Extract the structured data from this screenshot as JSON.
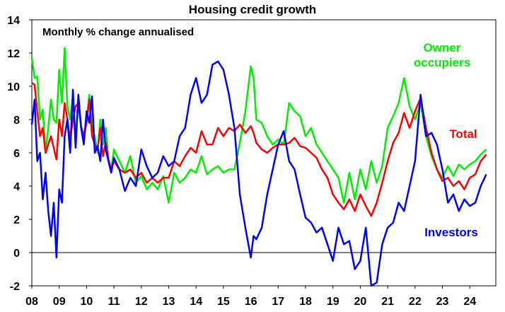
{
  "chart_data": {
    "type": "line",
    "title": "Housing credit growth",
    "subtitle": "Monthly % change annualised",
    "xlabel": "",
    "ylabel": "",
    "xlim": [
      2008.0,
      2024.95
    ],
    "ylim": [
      -2,
      14
    ],
    "y_ticks": [
      "14",
      "12",
      "10",
      "8",
      "6",
      "4",
      "2",
      "0",
      "-2"
    ],
    "x_ticks": [
      "08",
      "09",
      "10",
      "11",
      "12",
      "13",
      "14",
      "15",
      "16",
      "17",
      "18",
      "19",
      "20",
      "21",
      "22",
      "23",
      "24"
    ],
    "series": [
      {
        "name": "Owner occupiers",
        "label_lines": [
          "Owner",
          "occupiers"
        ],
        "color": "#00ee00",
        "x": [
          2008.0,
          2008.1,
          2008.2,
          2008.3,
          2008.4,
          2008.5,
          2008.6,
          2008.7,
          2008.8,
          2008.9,
          2009.0,
          2009.1,
          2009.2,
          2009.3,
          2009.4,
          2009.5,
          2009.6,
          2009.7,
          2009.8,
          2009.9,
          2010.0,
          2010.1,
          2010.2,
          2010.3,
          2010.4,
          2010.5,
          2010.6,
          2010.7,
          2010.8,
          2010.9,
          2011.0,
          2011.2,
          2011.4,
          2011.6,
          2011.8,
          2012.0,
          2012.2,
          2012.4,
          2012.6,
          2012.8,
          2013.0,
          2013.2,
          2013.4,
          2013.6,
          2013.8,
          2014.0,
          2014.2,
          2014.4,
          2014.6,
          2014.8,
          2015.0,
          2015.2,
          2015.4,
          2015.6,
          2015.8,
          2016.0,
          2016.1,
          2016.2,
          2016.4,
          2016.6,
          2016.8,
          2017.0,
          2017.2,
          2017.4,
          2017.6,
          2017.8,
          2018.0,
          2018.2,
          2018.4,
          2018.6,
          2018.8,
          2019.0,
          2019.2,
          2019.4,
          2019.6,
          2019.8,
          2020.0,
          2020.2,
          2020.4,
          2020.6,
          2020.8,
          2021.0,
          2021.2,
          2021.4,
          2021.6,
          2021.8,
          2022.0,
          2022.2,
          2022.4,
          2022.6,
          2022.8,
          2023.0,
          2023.2,
          2023.4,
          2023.6,
          2023.8,
          2024.0,
          2024.2,
          2024.4,
          2024.6
        ],
        "y": [
          11.7,
          10.5,
          10.6,
          8.0,
          8.6,
          6.0,
          7.5,
          9.2,
          8.0,
          7.8,
          11.0,
          9.0,
          12.3,
          8.8,
          8.0,
          9.5,
          7.0,
          9.0,
          7.5,
          7.0,
          8.0,
          9.5,
          7.5,
          7.0,
          6.0,
          8.0,
          6.5,
          7.5,
          5.5,
          5.0,
          6.2,
          5.5,
          4.8,
          5.8,
          4.2,
          4.6,
          3.8,
          4.2,
          3.8,
          4.6,
          3.0,
          4.8,
          4.2,
          4.5,
          5.0,
          4.8,
          5.8,
          4.7,
          5.0,
          5.2,
          4.8,
          5.0,
          5.0,
          6.6,
          8.5,
          11.2,
          10.5,
          8.0,
          7.8,
          7.0,
          6.5,
          6.8,
          6.5,
          9.0,
          8.5,
          8.2,
          7.0,
          7.5,
          6.5,
          6.0,
          5.5,
          5.0,
          4.5,
          3.0,
          4.8,
          3.2,
          5.0,
          3.8,
          5.5,
          4.2,
          5.2,
          7.5,
          8.2,
          9.0,
          10.5,
          8.8,
          8.0,
          9.0,
          7.0,
          5.8,
          5.0,
          4.5,
          5.2,
          4.6,
          5.3,
          5.0,
          5.3,
          5.5,
          5.9,
          6.2
        ]
      },
      {
        "name": "Total",
        "label_lines": [
          "Total"
        ],
        "color": "#ff0000",
        "x": [
          2008.0,
          2008.1,
          2008.2,
          2008.3,
          2008.4,
          2008.5,
          2008.6,
          2008.7,
          2008.8,
          2008.9,
          2009.0,
          2009.1,
          2009.2,
          2009.3,
          2009.4,
          2009.5,
          2009.6,
          2009.7,
          2009.8,
          2009.9,
          2010.0,
          2010.1,
          2010.2,
          2010.3,
          2010.4,
          2010.5,
          2010.6,
          2010.7,
          2010.8,
          2010.9,
          2011.0,
          2011.2,
          2011.4,
          2011.6,
          2011.8,
          2012.0,
          2012.2,
          2012.4,
          2012.6,
          2012.8,
          2013.0,
          2013.2,
          2013.4,
          2013.6,
          2013.8,
          2014.0,
          2014.2,
          2014.4,
          2014.6,
          2014.8,
          2015.0,
          2015.2,
          2015.4,
          2015.6,
          2015.8,
          2016.0,
          2016.1,
          2016.2,
          2016.4,
          2016.6,
          2016.8,
          2017.0,
          2017.2,
          2017.4,
          2017.6,
          2017.8,
          2018.0,
          2018.2,
          2018.4,
          2018.6,
          2018.8,
          2019.0,
          2019.2,
          2019.4,
          2019.6,
          2019.8,
          2020.0,
          2020.2,
          2020.4,
          2020.6,
          2020.8,
          2021.0,
          2021.2,
          2021.4,
          2021.6,
          2021.8,
          2022.0,
          2022.2,
          2022.4,
          2022.6,
          2022.8,
          2023.0,
          2023.2,
          2023.4,
          2023.6,
          2023.8,
          2024.0,
          2024.2,
          2024.4,
          2024.6
        ],
        "y": [
          10.2,
          10.1,
          8.5,
          7.0,
          7.5,
          6.0,
          6.5,
          7.0,
          6.3,
          5.6,
          8.0,
          7.0,
          9.0,
          8.0,
          6.8,
          8.0,
          8.8,
          9.0,
          7.6,
          7.0,
          7.8,
          9.2,
          7.0,
          6.5,
          6.2,
          7.5,
          5.8,
          6.6,
          5.6,
          5.0,
          5.5,
          5.0,
          4.8,
          5.0,
          4.5,
          4.8,
          4.2,
          4.5,
          4.2,
          4.5,
          4.5,
          5.5,
          5.2,
          5.8,
          6.3,
          6.0,
          7.3,
          6.5,
          6.5,
          7.5,
          7.0,
          7.5,
          7.3,
          7.7,
          7.2,
          7.6,
          7.2,
          6.6,
          6.2,
          6.0,
          6.3,
          6.5,
          6.5,
          6.6,
          6.9,
          6.4,
          6.3,
          6.0,
          5.7,
          5.0,
          4.5,
          3.5,
          3.0,
          2.6,
          3.2,
          2.5,
          3.5,
          2.8,
          2.2,
          3.0,
          4.2,
          5.5,
          6.6,
          7.2,
          8.4,
          7.5,
          8.5,
          9.3,
          7.5,
          6.0,
          5.0,
          4.3,
          4.5,
          4.0,
          4.3,
          3.8,
          4.5,
          4.7,
          5.5,
          5.9
        ]
      },
      {
        "name": "Investors",
        "label_lines": [
          "Investors"
        ],
        "color": "#0000ff",
        "x": [
          2008.0,
          2008.1,
          2008.2,
          2008.3,
          2008.4,
          2008.5,
          2008.6,
          2008.7,
          2008.8,
          2008.9,
          2009.0,
          2009.1,
          2009.2,
          2009.3,
          2009.4,
          2009.5,
          2009.6,
          2009.7,
          2009.8,
          2009.9,
          2010.0,
          2010.1,
          2010.2,
          2010.3,
          2010.4,
          2010.5,
          2010.6,
          2010.7,
          2010.8,
          2010.9,
          2011.0,
          2011.2,
          2011.4,
          2011.6,
          2011.8,
          2012.0,
          2012.2,
          2012.4,
          2012.6,
          2012.8,
          2013.0,
          2013.2,
          2013.4,
          2013.6,
          2013.8,
          2014.0,
          2014.2,
          2014.4,
          2014.6,
          2014.8,
          2015.0,
          2015.2,
          2015.4,
          2015.6,
          2015.8,
          2016.0,
          2016.1,
          2016.2,
          2016.4,
          2016.6,
          2016.8,
          2017.0,
          2017.2,
          2017.4,
          2017.6,
          2017.8,
          2018.0,
          2018.2,
          2018.4,
          2018.6,
          2018.8,
          2019.0,
          2019.2,
          2019.4,
          2019.6,
          2019.8,
          2020.0,
          2020.2,
          2020.4,
          2020.6,
          2020.8,
          2021.0,
          2021.2,
          2021.4,
          2021.6,
          2021.8,
          2022.0,
          2022.2,
          2022.4,
          2022.6,
          2022.8,
          2023.0,
          2023.2,
          2023.4,
          2023.6,
          2023.8,
          2024.0,
          2024.2,
          2024.4,
          2024.6
        ],
        "y": [
          7.7,
          9.2,
          5.5,
          6.0,
          3.2,
          4.8,
          2.5,
          1.0,
          3.0,
          -0.3,
          3.8,
          3.0,
          7.0,
          8.0,
          6.0,
          9.8,
          6.3,
          9.5,
          7.5,
          6.5,
          8.5,
          7.8,
          9.4,
          6.0,
          6.4,
          5.5,
          8.0,
          6.2,
          5.5,
          4.8,
          5.7,
          5.0,
          3.7,
          4.5,
          4.0,
          6.2,
          5.2,
          4.5,
          4.8,
          5.8,
          5.2,
          5.5,
          7.0,
          7.5,
          9.5,
          10.5,
          9.0,
          9.5,
          11.3,
          11.5,
          11.0,
          9.5,
          7.5,
          3.5,
          1.5,
          -0.3,
          1.0,
          0.8,
          1.5,
          3.5,
          5.0,
          6.5,
          7.3,
          5.5,
          5.0,
          3.5,
          2.1,
          1.8,
          1.2,
          1.5,
          0.5,
          -0.5,
          1.5,
          0.5,
          0.7,
          -1.0,
          -0.5,
          1.5,
          -2.0,
          -1.8,
          0.5,
          1.5,
          1.8,
          3.0,
          2.5,
          4.0,
          5.5,
          9.5,
          7.0,
          7.2,
          6.5,
          5.0,
          3.0,
          3.5,
          2.5,
          3.2,
          2.8,
          3.0,
          4.0,
          4.7
        ]
      }
    ]
  }
}
